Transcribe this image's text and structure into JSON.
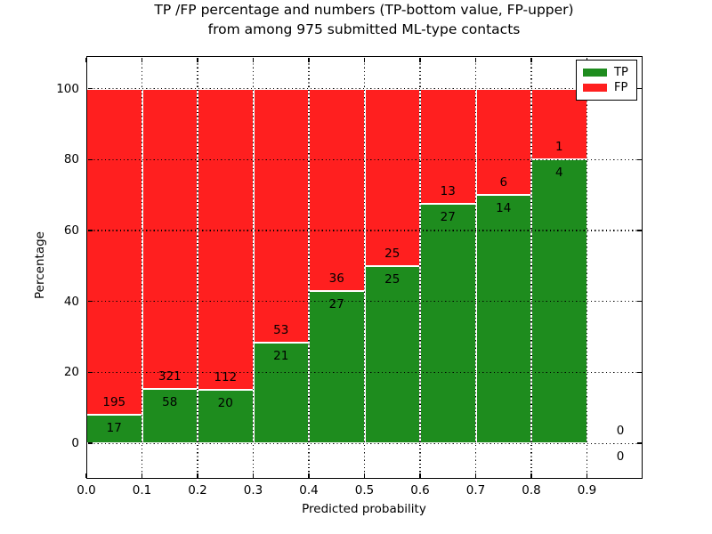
{
  "figure": {
    "title_line1": "TP /FP percentage and numbers (TP-bottom value, FP-upper)",
    "title_line2": "from among 975 submitted ML-type contacts",
    "xlabel": "Predicted probability",
    "ylabel": "Percentage",
    "total_contacts": 975
  },
  "legend": {
    "items": [
      {
        "label": "TP",
        "color": "#1e8c1e"
      },
      {
        "label": "FP",
        "color": "#ff1f1f"
      }
    ]
  },
  "chart_data": {
    "type": "bar",
    "subtype": "stacked-percentage",
    "title": "TP /FP percentage and numbers (TP-bottom value, FP-upper) from among 975 submitted ML-type contacts",
    "xlabel": "Predicted probability",
    "ylabel": "Percentage",
    "xlim": [
      0.0,
      1.0
    ],
    "ylim": [
      -10,
      109.2
    ],
    "grid": true,
    "legend_position": "upper right",
    "colors": {
      "tp": "#1e8c1e",
      "fp": "#ff1f1f",
      "bar_edge": "#ffffff"
    },
    "x_ticks": [
      {
        "v": 0.0,
        "label": "0.0"
      },
      {
        "v": 0.1,
        "label": "0.1"
      },
      {
        "v": 0.2,
        "label": "0.2"
      },
      {
        "v": 0.3,
        "label": "0.3"
      },
      {
        "v": 0.4,
        "label": "0.4"
      },
      {
        "v": 0.5,
        "label": "0.5"
      },
      {
        "v": 0.6,
        "label": "0.6"
      },
      {
        "v": 0.7,
        "label": "0.7"
      },
      {
        "v": 0.8,
        "label": "0.8"
      },
      {
        "v": 0.9,
        "label": "0.9"
      }
    ],
    "y_ticks": [
      {
        "v": 0,
        "label": "0"
      },
      {
        "v": 20,
        "label": "20"
      },
      {
        "v": 40,
        "label": "40"
      },
      {
        "v": 60,
        "label": "60"
      },
      {
        "v": 80,
        "label": "80"
      },
      {
        "v": 100,
        "label": "100"
      }
    ],
    "series": [
      {
        "name": "TP",
        "values": [
          17,
          58,
          20,
          21,
          27,
          25,
          27,
          14,
          4,
          0
        ]
      },
      {
        "name": "FP",
        "values": [
          195,
          321,
          112,
          53,
          36,
          25,
          13,
          6,
          1,
          0
        ]
      }
    ],
    "bins": [
      {
        "range": [
          0.0,
          0.1
        ],
        "tp": 17,
        "fp": 195,
        "tp_pct": 8.02
      },
      {
        "range": [
          0.1,
          0.2
        ],
        "tp": 58,
        "fp": 321,
        "tp_pct": 15.3
      },
      {
        "range": [
          0.2,
          0.3
        ],
        "tp": 20,
        "fp": 112,
        "tp_pct": 15.15
      },
      {
        "range": [
          0.3,
          0.4
        ],
        "tp": 21,
        "fp": 53,
        "tp_pct": 28.38
      },
      {
        "range": [
          0.4,
          0.5
        ],
        "tp": 27,
        "fp": 36,
        "tp_pct": 42.86
      },
      {
        "range": [
          0.5,
          0.6
        ],
        "tp": 25,
        "fp": 25,
        "tp_pct": 50.0
      },
      {
        "range": [
          0.6,
          0.7
        ],
        "tp": 27,
        "fp": 13,
        "tp_pct": 67.5
      },
      {
        "range": [
          0.7,
          0.8
        ],
        "tp": 14,
        "fp": 6,
        "tp_pct": 70.0
      },
      {
        "range": [
          0.8,
          0.9
        ],
        "tp": 4,
        "fp": 1,
        "tp_pct": 80.0
      },
      {
        "range": [
          0.9,
          1.0
        ],
        "tp": 0,
        "fp": 0,
        "tp_pct": 0.0,
        "label_x": 0.96
      }
    ]
  }
}
